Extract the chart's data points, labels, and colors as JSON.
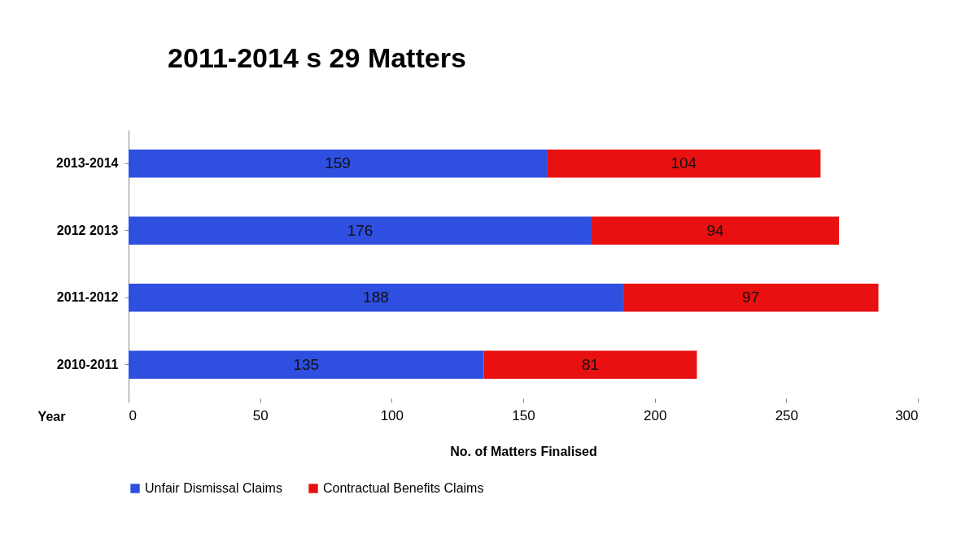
{
  "chart_data": {
    "type": "bar",
    "title": "2011-2014 s 29 Matters",
    "xlabel": "No. of Matters Finalised",
    "ylabel": "Year",
    "orientation": "horizontal",
    "stacked": true,
    "data_labels": true,
    "categories": [
      "2013-2014",
      "2012 2013",
      "2011-2012",
      "2010-2011"
    ],
    "series": [
      {
        "name": "Unfair Dismissal Claims",
        "color": "#2f4fe0",
        "values": [
          159,
          176,
          188,
          135
        ]
      },
      {
        "name": "Contractual Benefits Claims",
        "color": "#e81010",
        "values": [
          104,
          94,
          97,
          81
        ]
      }
    ],
    "xlim": [
      0,
      300
    ],
    "xticks": [
      0,
      50,
      100,
      150,
      200,
      250,
      300
    ],
    "grid": false,
    "legend": "bottom"
  }
}
